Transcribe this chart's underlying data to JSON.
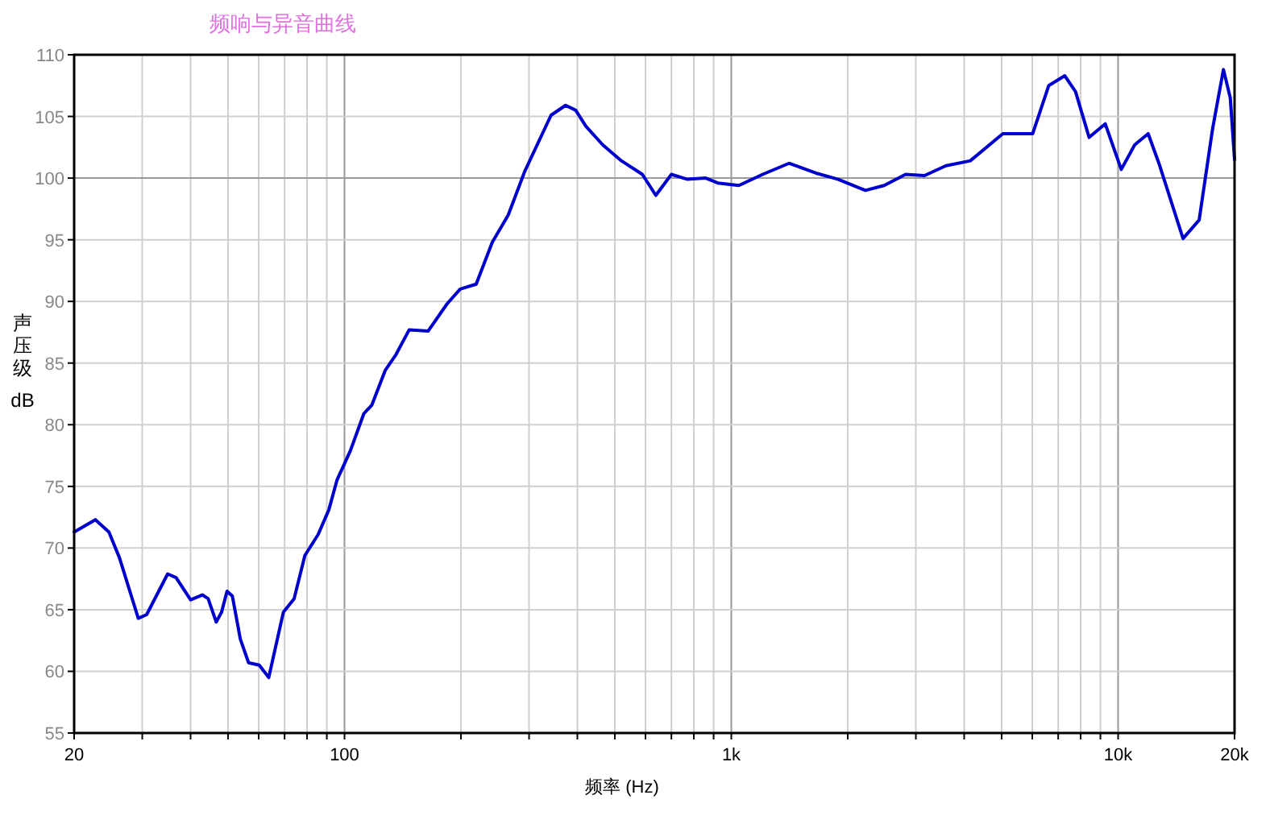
{
  "chart_data": {
    "type": "line",
    "title": "频响与异音曲线",
    "xlabel": "频率 (Hz)",
    "ylabel": "声压级 dB",
    "log": "x",
    "grid": true,
    "line_style": "solid",
    "xlim": [
      20,
      20000
    ],
    "ylim": [
      55,
      110
    ],
    "xticks": [
      20,
      {
        "value": 30,
        "label": null
      },
      {
        "value": 40,
        "label": null
      },
      {
        "value": 50,
        "label": null
      },
      {
        "value": 60,
        "label": null
      },
      {
        "value": 70,
        "label": null
      },
      {
        "value": 80,
        "label": null
      },
      {
        "value": 90,
        "label": null
      },
      100,
      {
        "value": 200,
        "label": null
      },
      {
        "value": 300,
        "label": null
      },
      {
        "value": 400,
        "label": null
      },
      {
        "value": 500,
        "label": null
      },
      {
        "value": 600,
        "label": null
      },
      {
        "value": 700,
        "label": null
      },
      {
        "value": 800,
        "label": null
      },
      {
        "value": 900,
        "label": null
      },
      {
        "value": 1000,
        "label": "1k"
      },
      {
        "value": 2000,
        "label": null
      },
      {
        "value": 3000,
        "label": null
      },
      {
        "value": 4000,
        "label": null
      },
      {
        "value": 5000,
        "label": null
      },
      {
        "value": 6000,
        "label": null
      },
      {
        "value": 7000,
        "label": null
      },
      {
        "value": 8000,
        "label": null
      },
      {
        "value": 9000,
        "label": null
      },
      {
        "value": 10000,
        "label": "10k"
      },
      {
        "value": 20000,
        "label": "20k"
      }
    ],
    "yticks": [
      55,
      60,
      65,
      70,
      75,
      80,
      85,
      90,
      95,
      100,
      105,
      110
    ],
    "series": [
      {
        "color": "#0000cc",
        "x": [
          20,
          22.7,
          24.6,
          26.2,
          29.3,
          30.8,
          34.9,
          36.7,
          40,
          42.9,
          44.4,
          46.6,
          48.1,
          49.7,
          51.3,
          53.8,
          56.5,
          60.2,
          63.7,
          69.5,
          74.1,
          79,
          85.5,
          91.1,
          95.6,
          103.6,
          112.2,
          117.7,
          127.4,
          135.9,
          147,
          164.6,
          184.1,
          199.1,
          219,
          241,
          265,
          292,
          342,
          373,
          396,
          421,
          465,
          520,
          589,
          638,
          700,
          770,
          859,
          923,
          1046,
          1205,
          1410,
          1656,
          1889,
          2221,
          2484,
          2822,
          3158,
          3588,
          4148,
          5035,
          6015,
          6616,
          7281,
          7763,
          8416,
          9263,
          10190,
          11040,
          11960,
          12750,
          14720,
          16200,
          17550,
          18720,
          19500,
          20000
        ],
        "values": [
          71.3,
          72.3,
          71.3,
          69.2,
          64.3,
          64.6,
          67.9,
          67.6,
          65.8,
          66.2,
          65.9,
          64.0,
          64.8,
          66.5,
          66.1,
          62.6,
          60.7,
          60.5,
          59.5,
          64.8,
          65.9,
          69.4,
          71.1,
          73.1,
          75.5,
          77.9,
          80.9,
          81.6,
          84.4,
          85.7,
          87.7,
          87.6,
          89.8,
          91.0,
          91.4,
          94.8,
          97.0,
          100.5,
          105.1,
          105.9,
          105.5,
          104.2,
          102.7,
          101.4,
          100.3,
          98.6,
          100.3,
          99.9,
          100.0,
          99.6,
          99.4,
          100.3,
          101.2,
          100.4,
          99.9,
          99.0,
          99.4,
          100.3,
          100.2,
          101.0,
          101.4,
          103.6,
          103.6,
          107.5,
          108.3,
          107.0,
          103.3,
          104.4,
          100.7,
          102.7,
          103.6,
          101.2,
          95.1,
          96.6,
          104.0,
          108.8,
          106.5,
          101.5
        ]
      }
    ]
  }
}
